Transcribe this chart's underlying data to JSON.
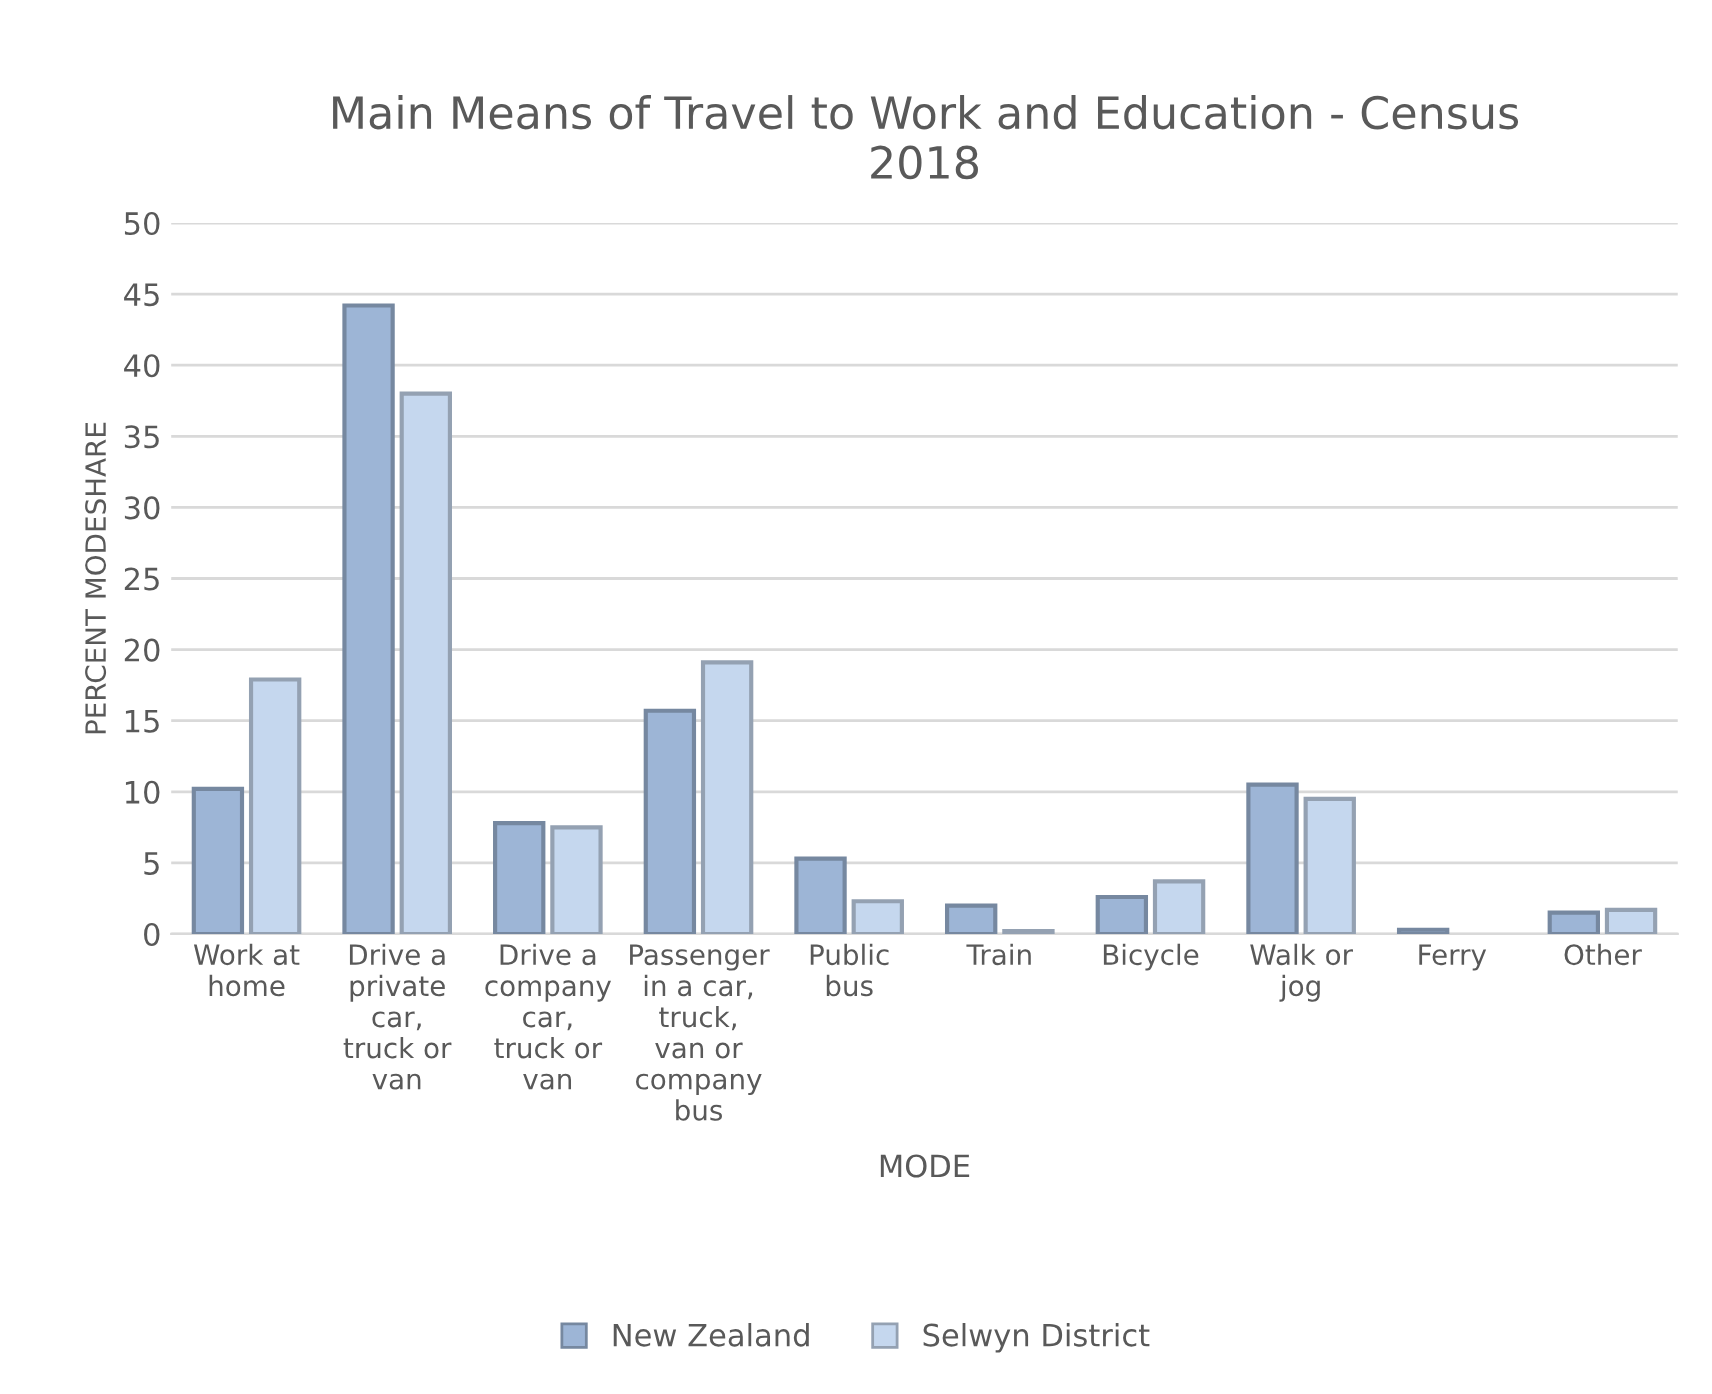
{
  "chart_data": {
    "type": "bar",
    "title": "Main Means of Travel to Work and Education - Census 2018",
    "xlabel": "MODE",
    "ylabel": "PERCENT MODESHARE",
    "categories": [
      "Work at home",
      "Drive a private car, truck or van",
      "Drive a company car, truck or van",
      "Passenger in a car, truck, van or company bus",
      "Public bus",
      "Train",
      "Bicycle",
      "Walk or jog",
      "Ferry",
      "Other"
    ],
    "series": [
      {
        "name": "New Zealand",
        "color": "#9db5d6",
        "values": [
          10.2,
          44.2,
          7.8,
          15.7,
          5.3,
          2.0,
          2.6,
          10.5,
          0.3,
          1.5
        ]
      },
      {
        "name": "Selwyn District",
        "color": "#c5d7ee",
        "values": [
          17.9,
          38.0,
          7.5,
          19.1,
          2.3,
          0.2,
          3.7,
          9.5,
          null,
          1.7
        ]
      }
    ],
    "ylim": [
      0,
      50
    ],
    "yticks": [
      0,
      5,
      10,
      15,
      20,
      25,
      30,
      35,
      40,
      45,
      50
    ],
    "grid": "y",
    "legend": "bottom"
  }
}
